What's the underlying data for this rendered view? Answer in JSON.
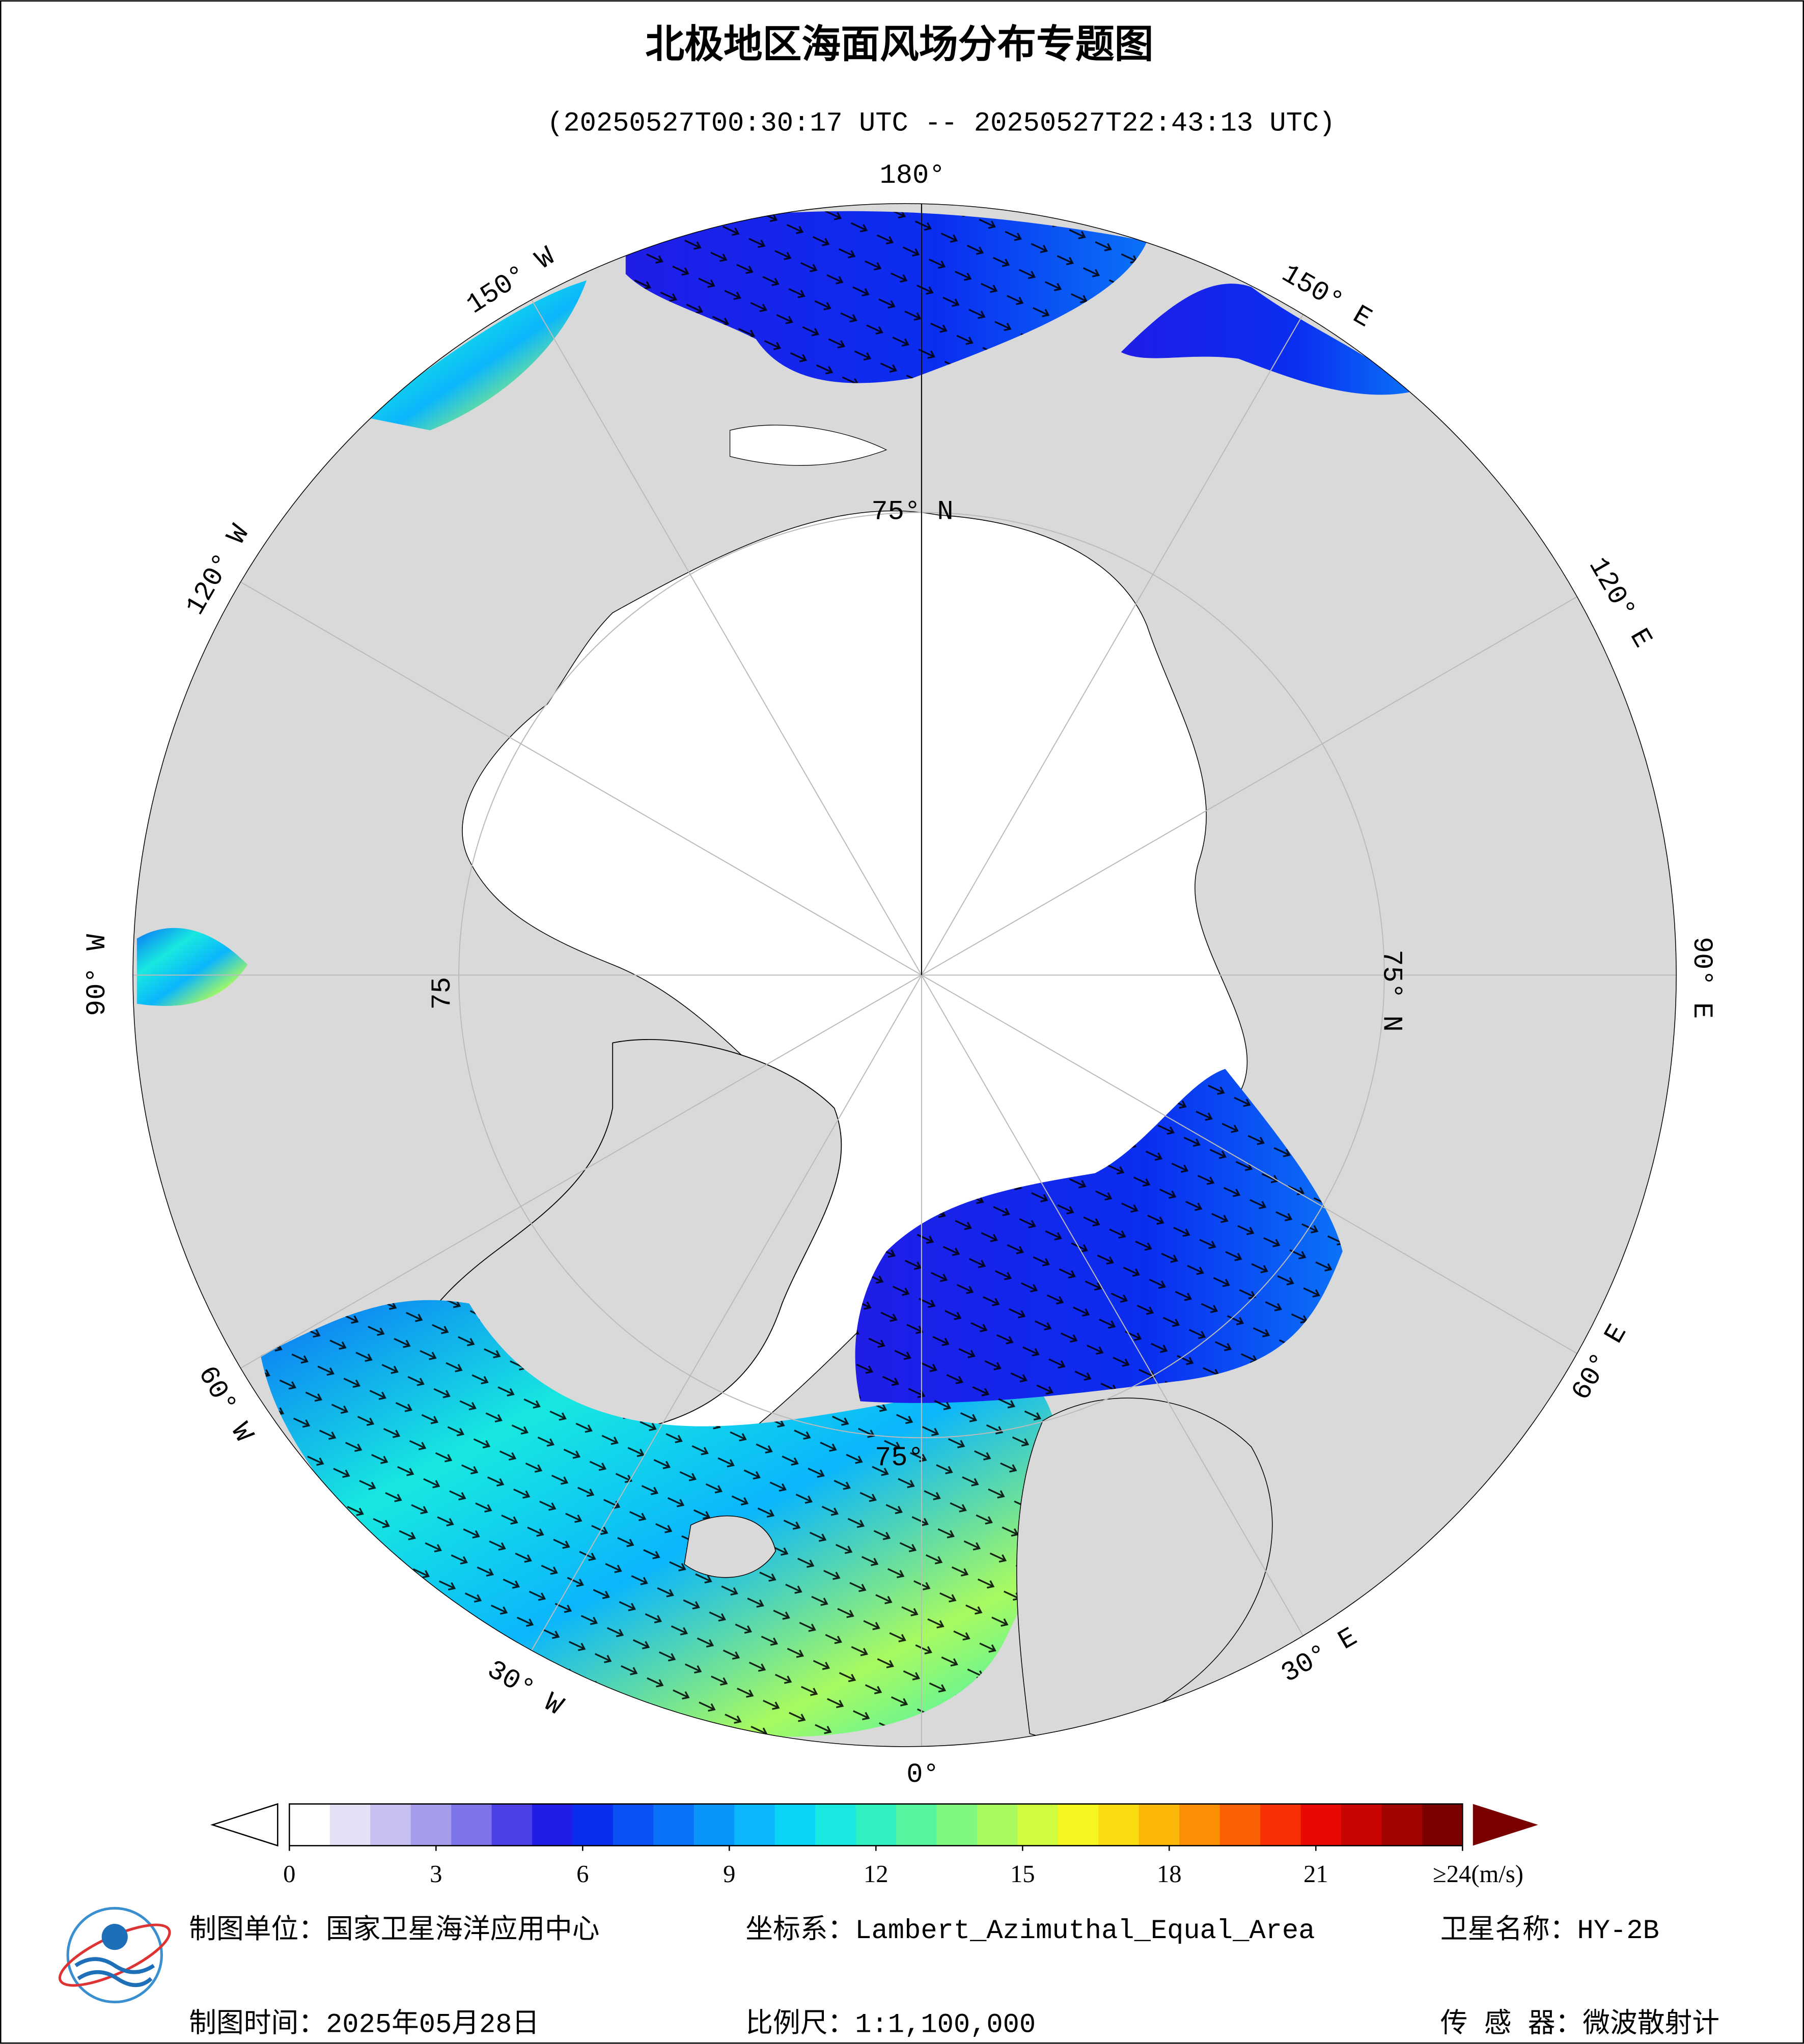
{
  "header": {
    "title": "北极地区海面风场分布专题图",
    "subtitle": "(20250527T00:30:17 UTC -- 20250527T22:43:13 UTC)"
  },
  "map": {
    "longitude_labels": [
      "180°",
      "150° W",
      "120° W",
      "90° W",
      "60° W",
      "30° W",
      "0°",
      "30° E",
      "60° E",
      "90° E",
      "120° E",
      "150° E"
    ],
    "latitude_labels": [
      "75° N",
      "75° N",
      "75",
      "75°"
    ]
  },
  "colorbar": {
    "range": [
      0,
      24
    ],
    "ticks": [
      0,
      3,
      6,
      9,
      12,
      15,
      18,
      21,
      {
        "value": 24,
        "label": "≥24(m/s)"
      }
    ],
    "colors": [
      "#ffffff",
      "#e6e0f7",
      "#c8c0f0",
      "#a59cec",
      "#7d74ea",
      "#4b3fe6",
      "#1f1de6",
      "#0a2ef0",
      "#0a50f5",
      "#0a72f8",
      "#0a95fb",
      "#0ab6fc",
      "#0ad4f5",
      "#18e8e0",
      "#30f0c0",
      "#55f5a0",
      "#80f880",
      "#a8fa60",
      "#d0fc40",
      "#f5f520",
      "#fadc10",
      "#fcb808",
      "#fc9005",
      "#fc6004",
      "#f83003",
      "#e80a02",
      "#c80501",
      "#a00401",
      "#7a0000"
    ]
  },
  "footer": {
    "organization": "制图单位：国家卫星海洋应用中心",
    "projection": "坐标系：Lambert_Azimuthal_Equal_Area",
    "satellite": "卫星名称：HY-2B",
    "date": "制图时间：2025年05月28日",
    "scale": "比例尺：1:1,100,000",
    "sensor": "传 感 器：微波散射计"
  }
}
